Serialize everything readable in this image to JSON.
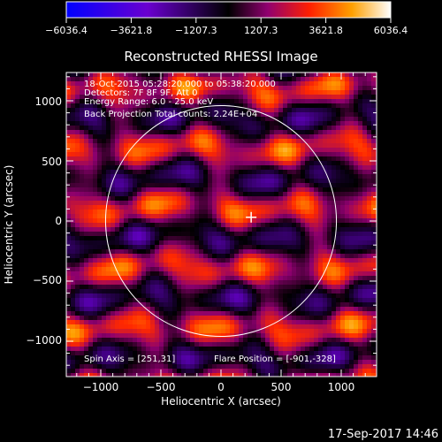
{
  "colorbar": {
    "tick_labels": [
      "−6036.4",
      "−3621.8",
      "−1207.3",
      "1207.3",
      "3621.8",
      "6036.4"
    ],
    "range": [
      -6036.4,
      6036.4
    ]
  },
  "chart_data": {
    "type": "heatmap",
    "title": "Reconstructed RHESSI Image",
    "xlabel": "Heliocentric X (arcsec)",
    "ylabel": "Heliocentric Y (arcsec)",
    "xlim": [
      -1300,
      1300
    ],
    "ylim": [
      -1300,
      1300
    ],
    "x_ticks": [
      -1000,
      -500,
      0,
      500,
      1000
    ],
    "y_ticks": [
      -1000,
      -500,
      0,
      500,
      1000
    ],
    "x_tick_labels": [
      "−1000",
      "−500",
      "0",
      "500",
      "1000"
    ],
    "y_tick_labels": [
      "−1000",
      "−500",
      "0",
      "500",
      "1000"
    ],
    "solar_disk_radius_arcsec": 960,
    "flare_marker": {
      "x": 251,
      "y": 31
    },
    "colormap": [
      "#0000ff",
      "#5000c8",
      "#000000",
      "#7f00a0",
      "#ff3000",
      "#ff9000",
      "#ffffff"
    ],
    "annotations": {
      "time_range": "18-Oct-2015 05:28:20.000 to 05:38:20.000",
      "detectors": "Detectors: 7F 8F 9F, Att 0",
      "energy_range": "Energy Range: 6.0 - 25.0 keV",
      "method_counts": "Back Projection    Total counts: 2.24E+04",
      "spin_axis": "Spin Axis = [251,31]",
      "flare_position": "Flare Position = [-901,-328]"
    }
  },
  "footer": {
    "timestamp": "17-Sep-2017 14:46"
  }
}
